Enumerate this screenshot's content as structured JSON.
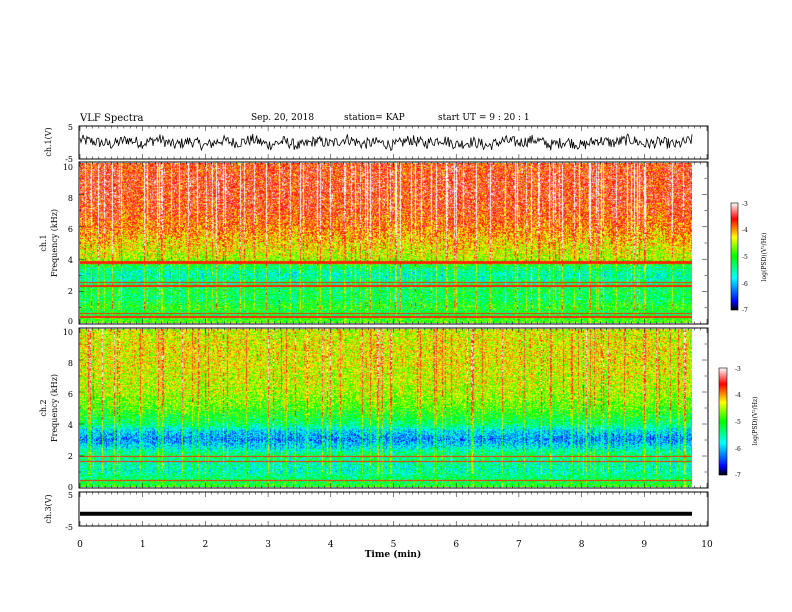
{
  "header": {
    "title": "VLF Spectra",
    "date": "Sep. 20, 2018",
    "station": "station= KAP",
    "start": "start  UT  =   9 : 20 : 1"
  },
  "chart_data": [
    {
      "type": "line",
      "panel": "ch1_waveform",
      "ylabel": "ch.1(V)",
      "ylim": [
        -5,
        5
      ],
      "yticks": [
        "5",
        "-5"
      ],
      "xlim": [
        0,
        10
      ],
      "x_unit": "min",
      "series": [
        {
          "values": [
            1.6,
            0.4,
            -1.2,
            1.9,
            -0.5,
            2.3,
            -1.8,
            0.9,
            -2.1,
            1.4,
            -0.3,
            2.0,
            -1.5,
            0.7,
            -2.4,
            1.1,
            -0.8,
            2.5,
            -1.0,
            0.2,
            -1.9,
            1.7,
            -0.6,
            2.2,
            -1.3,
            0.5,
            -2.2,
            1.2,
            -0.1,
            1.9,
            -1.7,
            0.8,
            -2.0,
            1.5,
            -0.4,
            2.1,
            -1.1,
            0.3,
            -1.6,
            1.8
          ]
        }
      ]
    },
    {
      "type": "heatmap",
      "panel": "ch1_spectrogram",
      "ylabel": "ch.1\nFrequency (kHz)",
      "ylim": [
        0,
        10
      ],
      "yticks": [
        "0",
        "2",
        "4",
        "6",
        "8",
        "10"
      ],
      "xlim": [
        0,
        10
      ],
      "colorbar": {
        "label": "log(PSD)(V²/Hz)",
        "range": [
          -7,
          -3
        ],
        "ticks": [
          "-3",
          "-4",
          "-5",
          "-6",
          "-7"
        ]
      },
      "profile": {
        "freq_khz": [
          0,
          0.5,
          1,
          1.5,
          2,
          2.5,
          3,
          3.5,
          4,
          5,
          6,
          7,
          8,
          9,
          10
        ],
        "log_psd": [
          -4.8,
          -5.2,
          -5.0,
          -5.3,
          -5.2,
          -5.4,
          -5.6,
          -5.3,
          -4.5,
          -4.2,
          -3.9,
          -3.7,
          -3.6,
          -3.6,
          -3.7
        ]
      },
      "lines_khz": [
        3.8,
        3.7,
        2.5,
        2.3,
        0.55,
        0.35
      ]
    },
    {
      "type": "heatmap",
      "panel": "ch2_spectrogram",
      "ylabel": "ch.2\nFrequency (kHz)",
      "ylim": [
        0,
        10
      ],
      "yticks": [
        "0",
        "2",
        "4",
        "6",
        "8",
        "10"
      ],
      "xlim": [
        0,
        10
      ],
      "colorbar": {
        "label": "log(PSD)(V²/Hz)",
        "range": [
          -7,
          -3
        ],
        "ticks": [
          "-3",
          "-4",
          "-5",
          "-6",
          "-7"
        ]
      },
      "profile": {
        "freq_khz": [
          0,
          0.5,
          1,
          1.5,
          2,
          2.5,
          3,
          3.5,
          4,
          5,
          6,
          7,
          8,
          9,
          10
        ],
        "log_psd": [
          -5.0,
          -5.3,
          -5.6,
          -5.5,
          -5.3,
          -5.8,
          -6.2,
          -5.9,
          -5.3,
          -4.8,
          -4.5,
          -4.4,
          -4.3,
          -4.3,
          -4.4
        ]
      },
      "lines_khz": [
        1.9,
        1.6,
        0.4
      ]
    },
    {
      "type": "line",
      "panel": "ch3_waveform",
      "ylabel": "ch.3(V)",
      "ylim": [
        -5,
        5
      ],
      "yticks": [
        "5",
        "-5"
      ],
      "xlim": [
        0,
        10
      ],
      "xticks": [
        "0",
        "1",
        "2",
        "3",
        "4",
        "5",
        "6",
        "7",
        "8",
        "9",
        "10"
      ],
      "xlabel": "Time (min)",
      "series": [
        {
          "values": [
            -1.5,
            -1.5
          ]
        }
      ]
    }
  ]
}
